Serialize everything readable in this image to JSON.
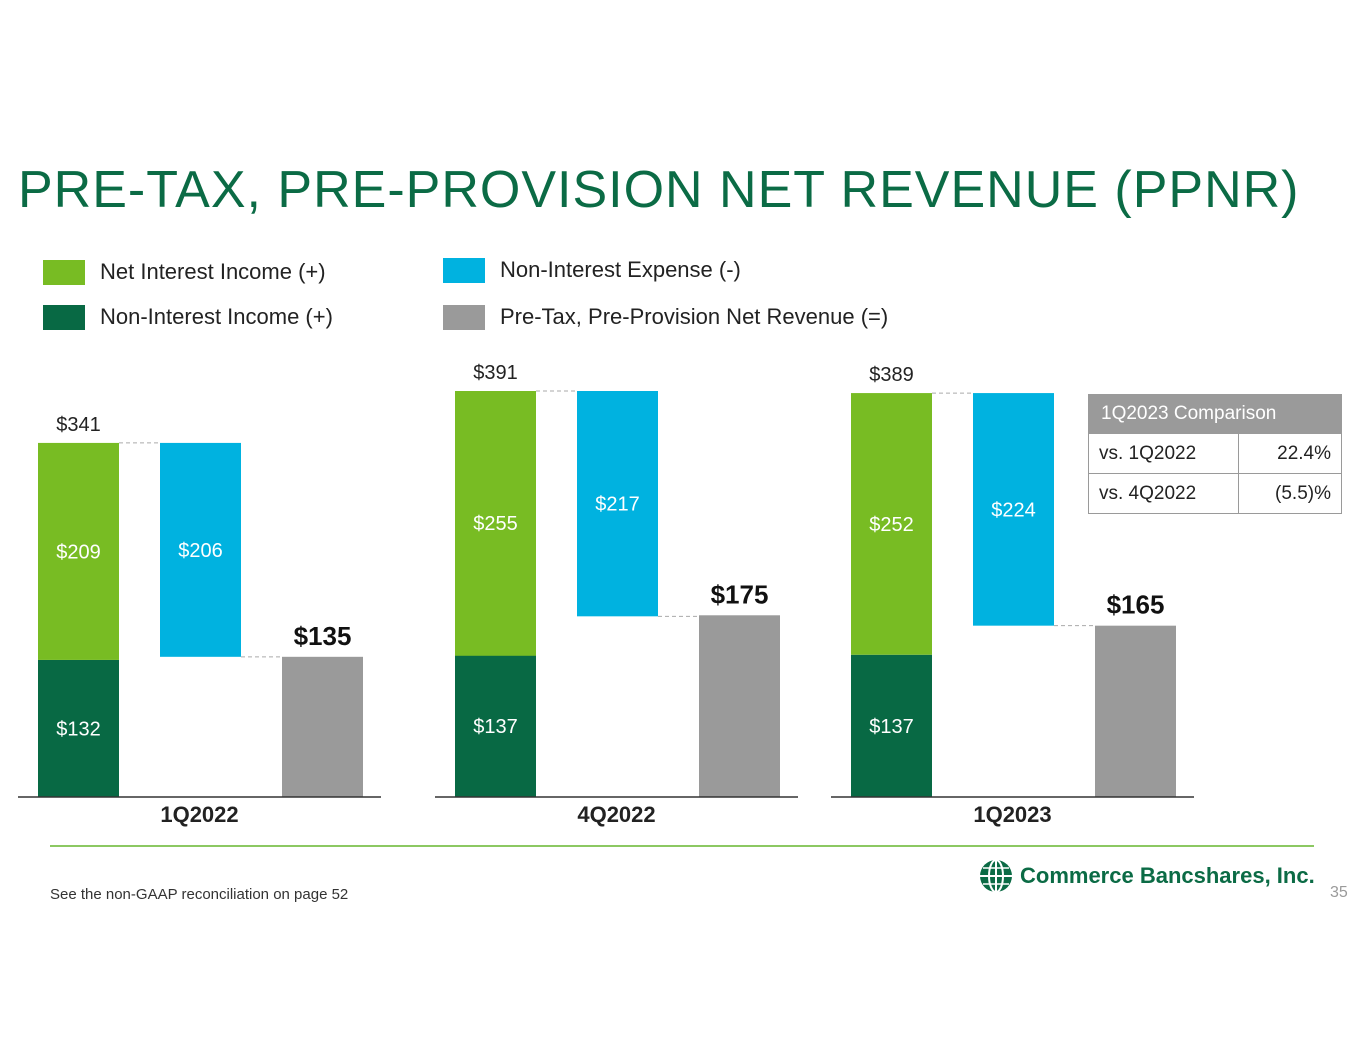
{
  "page": {
    "title": "PRE-TAX, PRE-PROVISION NET REVENUE (PPNR)",
    "footnote": "See the non-GAAP reconciliation on page 52",
    "page_number": "35",
    "logo_text": "Commerce Bancshares, Inc."
  },
  "legend": {
    "net_interest_income": "Net Interest Income (+)",
    "non_interest_income": "Non-Interest Income (+)",
    "non_interest_expense": "Non-Interest Expense (-)",
    "ppnr": "Pre-Tax, Pre-Provision Net Revenue (=)"
  },
  "colors": {
    "title": "#0b6b45",
    "net_interest_income": "#78bc23",
    "non_interest_income": "#086944",
    "non_interest_expense": "#00b2e0",
    "ppnr": "#9a9a9a",
    "rule": "#8cc862"
  },
  "comparison": {
    "header": "1Q2023 Comparison",
    "rows": [
      {
        "label": "vs. 1Q2022",
        "value": "22.4%"
      },
      {
        "label": "vs. 4Q2022",
        "value": "(5.5)%"
      }
    ]
  },
  "chart_data": {
    "type": "bar",
    "subtype": "waterfall",
    "title": "",
    "units": "$ millions",
    "categories": [
      "1Q2022",
      "4Q2022",
      "1Q2023"
    ],
    "series": [
      {
        "name": "Non-Interest Income (+)",
        "values": [
          132,
          137,
          137
        ],
        "labels": [
          "$132",
          "$137",
          "$137"
        ]
      },
      {
        "name": "Net Interest Income (+)",
        "values": [
          209,
          255,
          252
        ],
        "labels": [
          "$209",
          "$255",
          "$252"
        ]
      },
      {
        "name": "Non-Interest Expense (-)",
        "values": [
          206,
          217,
          224
        ],
        "labels": [
          "$206",
          "$217",
          "$224"
        ]
      },
      {
        "name": "Pre-Tax, Pre-Provision Net Revenue (=)",
        "values": [
          135,
          175,
          165
        ],
        "labels": [
          "$135",
          "$175",
          "$165"
        ]
      }
    ],
    "totals": [
      341,
      391,
      389
    ],
    "total_labels": [
      "$341",
      "$391",
      "$389"
    ],
    "ylim": [
      0,
      391
    ]
  }
}
